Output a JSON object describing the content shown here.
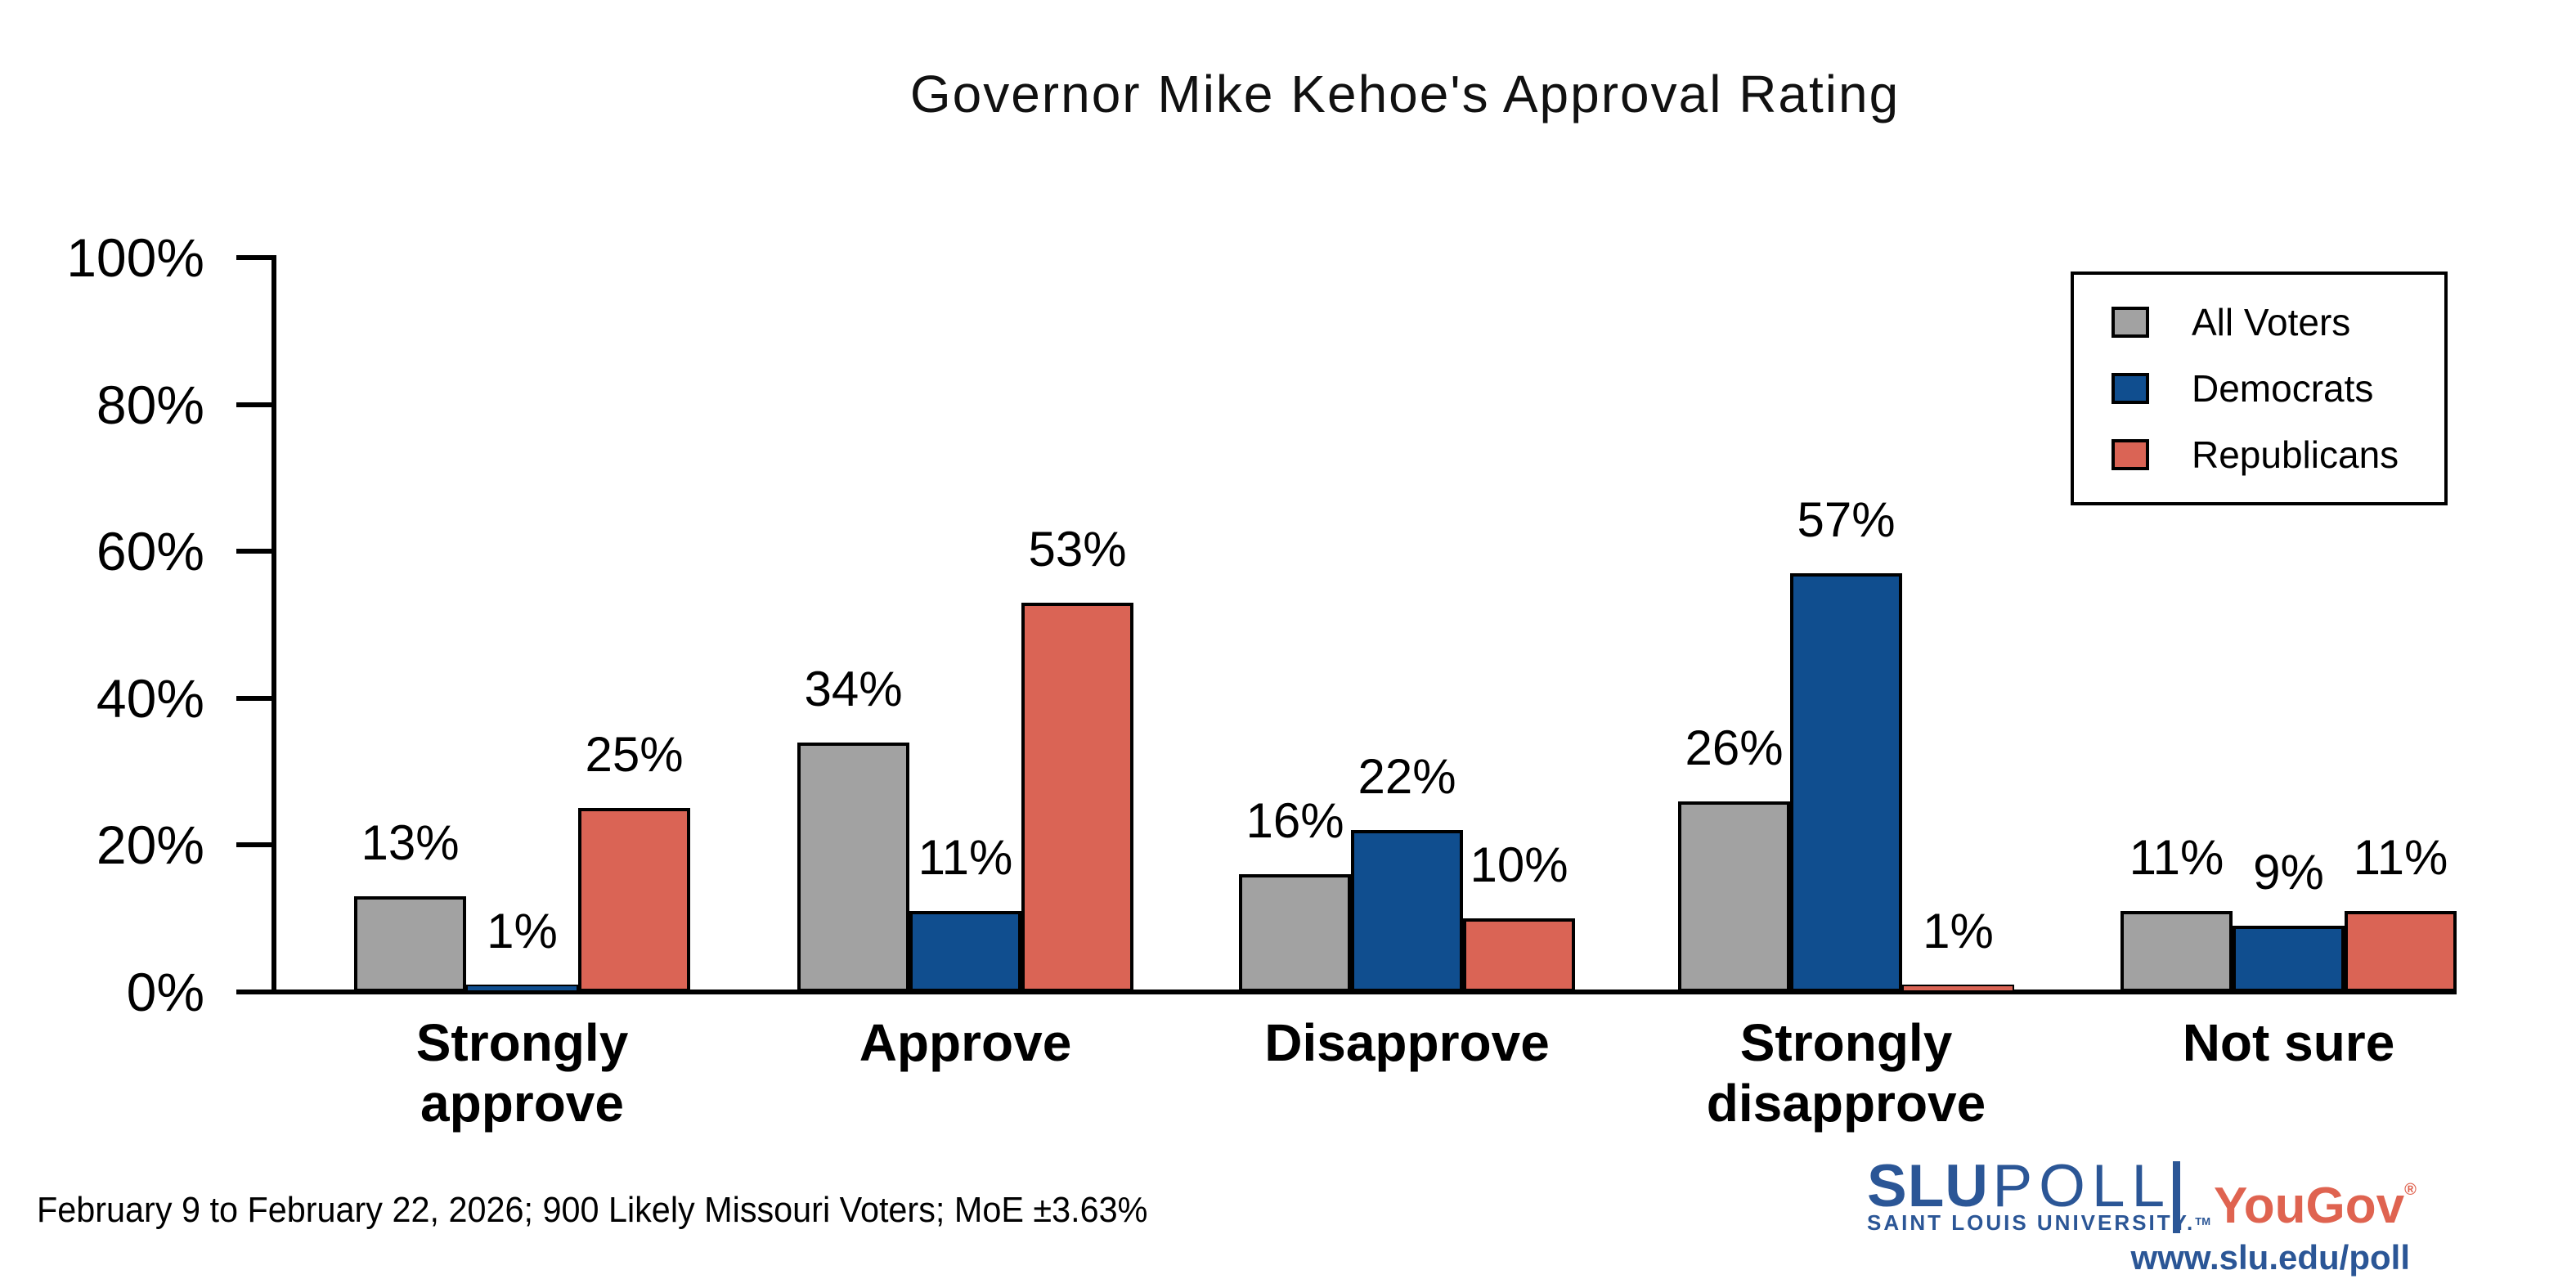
{
  "chart_data": {
    "type": "bar",
    "title": "Governor Mike Kehoe's Approval Rating",
    "categories": [
      "Strongly approve",
      "Approve",
      "Disapprove",
      "Strongly disapprove",
      "Not sure"
    ],
    "category_lines": [
      [
        "Strongly",
        "approve"
      ],
      [
        "Approve"
      ],
      [
        "Disapprove"
      ],
      [
        "Strongly",
        "disapprove"
      ],
      [
        "Not sure"
      ]
    ],
    "series": [
      {
        "name": "All Voters",
        "color": "#A2A2A2",
        "values": [
          13,
          34,
          16,
          26,
          11
        ]
      },
      {
        "name": "Democrats",
        "color": "#104E8F",
        "values": [
          1,
          11,
          22,
          57,
          9
        ]
      },
      {
        "name": "Republicans",
        "color": "#DA6455",
        "values": [
          25,
          53,
          10,
          1,
          11
        ]
      }
    ],
    "value_label_format": "{v}%",
    "y_tick_values": [
      0,
      20,
      40,
      60,
      80,
      100
    ],
    "y_tick_labels": [
      "0%",
      "20%",
      "40%",
      "60%",
      "80%",
      "100%"
    ],
    "ylim": [
      0,
      100
    ],
    "xlabel": "",
    "ylabel": "",
    "grid": false,
    "legend_position": "upper right",
    "bar_edge_color": "#000000"
  },
  "footnote": "February 9 to February 22, 2026; 900 Likely Missouri Voters; MoE ±3.63%",
  "branding": {
    "slu": "SLU",
    "poll": "POLL",
    "slu_sub": "SAINT LOUIS UNIVERSITY.",
    "slu_sub_tm": "TM",
    "yougov": "YouGov",
    "yougov_reg": "®",
    "url": "www.slu.edu/poll",
    "slu_blue": "#2B5696",
    "yougov_red": "#DF6350"
  }
}
